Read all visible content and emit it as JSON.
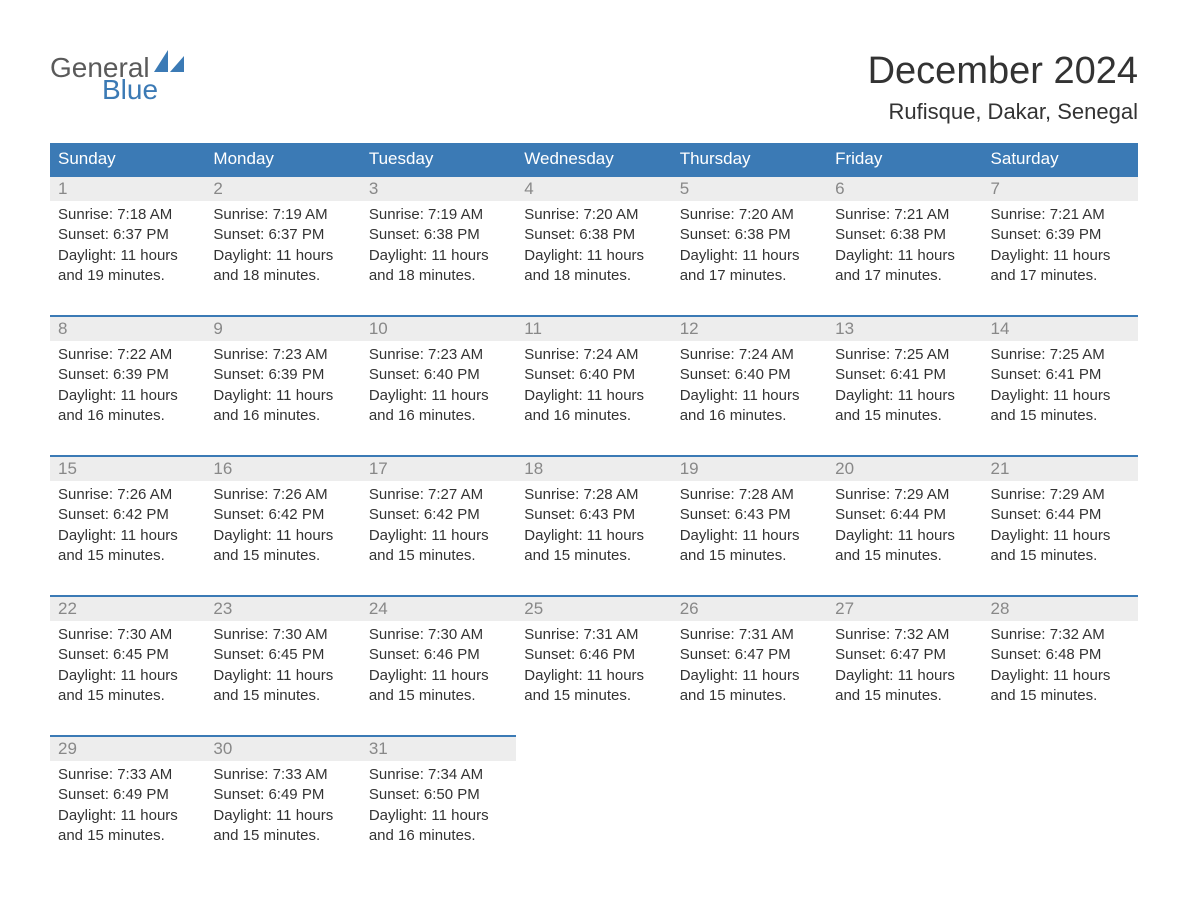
{
  "logo": {
    "text1": "General",
    "text2": "Blue",
    "icon_color": "#3b7ab5"
  },
  "title": "December 2024",
  "location": "Rufisque, Dakar, Senegal",
  "colors": {
    "header_bg": "#3b7ab5",
    "header_text": "#ffffff",
    "daynum_bg": "#ededed",
    "daynum_text": "#888888",
    "body_text": "#333333",
    "row_border": "#3b7ab5"
  },
  "weekdays": [
    "Sunday",
    "Monday",
    "Tuesday",
    "Wednesday",
    "Thursday",
    "Friday",
    "Saturday"
  ],
  "weeks": [
    [
      {
        "day": "1",
        "sunrise": "Sunrise: 7:18 AM",
        "sunset": "Sunset: 6:37 PM",
        "dl1": "Daylight: 11 hours",
        "dl2": "and 19 minutes."
      },
      {
        "day": "2",
        "sunrise": "Sunrise: 7:19 AM",
        "sunset": "Sunset: 6:37 PM",
        "dl1": "Daylight: 11 hours",
        "dl2": "and 18 minutes."
      },
      {
        "day": "3",
        "sunrise": "Sunrise: 7:19 AM",
        "sunset": "Sunset: 6:38 PM",
        "dl1": "Daylight: 11 hours",
        "dl2": "and 18 minutes."
      },
      {
        "day": "4",
        "sunrise": "Sunrise: 7:20 AM",
        "sunset": "Sunset: 6:38 PM",
        "dl1": "Daylight: 11 hours",
        "dl2": "and 18 minutes."
      },
      {
        "day": "5",
        "sunrise": "Sunrise: 7:20 AM",
        "sunset": "Sunset: 6:38 PM",
        "dl1": "Daylight: 11 hours",
        "dl2": "and 17 minutes."
      },
      {
        "day": "6",
        "sunrise": "Sunrise: 7:21 AM",
        "sunset": "Sunset: 6:38 PM",
        "dl1": "Daylight: 11 hours",
        "dl2": "and 17 minutes."
      },
      {
        "day": "7",
        "sunrise": "Sunrise: 7:21 AM",
        "sunset": "Sunset: 6:39 PM",
        "dl1": "Daylight: 11 hours",
        "dl2": "and 17 minutes."
      }
    ],
    [
      {
        "day": "8",
        "sunrise": "Sunrise: 7:22 AM",
        "sunset": "Sunset: 6:39 PM",
        "dl1": "Daylight: 11 hours",
        "dl2": "and 16 minutes."
      },
      {
        "day": "9",
        "sunrise": "Sunrise: 7:23 AM",
        "sunset": "Sunset: 6:39 PM",
        "dl1": "Daylight: 11 hours",
        "dl2": "and 16 minutes."
      },
      {
        "day": "10",
        "sunrise": "Sunrise: 7:23 AM",
        "sunset": "Sunset: 6:40 PM",
        "dl1": "Daylight: 11 hours",
        "dl2": "and 16 minutes."
      },
      {
        "day": "11",
        "sunrise": "Sunrise: 7:24 AM",
        "sunset": "Sunset: 6:40 PM",
        "dl1": "Daylight: 11 hours",
        "dl2": "and 16 minutes."
      },
      {
        "day": "12",
        "sunrise": "Sunrise: 7:24 AM",
        "sunset": "Sunset: 6:40 PM",
        "dl1": "Daylight: 11 hours",
        "dl2": "and 16 minutes."
      },
      {
        "day": "13",
        "sunrise": "Sunrise: 7:25 AM",
        "sunset": "Sunset: 6:41 PM",
        "dl1": "Daylight: 11 hours",
        "dl2": "and 15 minutes."
      },
      {
        "day": "14",
        "sunrise": "Sunrise: 7:25 AM",
        "sunset": "Sunset: 6:41 PM",
        "dl1": "Daylight: 11 hours",
        "dl2": "and 15 minutes."
      }
    ],
    [
      {
        "day": "15",
        "sunrise": "Sunrise: 7:26 AM",
        "sunset": "Sunset: 6:42 PM",
        "dl1": "Daylight: 11 hours",
        "dl2": "and 15 minutes."
      },
      {
        "day": "16",
        "sunrise": "Sunrise: 7:26 AM",
        "sunset": "Sunset: 6:42 PM",
        "dl1": "Daylight: 11 hours",
        "dl2": "and 15 minutes."
      },
      {
        "day": "17",
        "sunrise": "Sunrise: 7:27 AM",
        "sunset": "Sunset: 6:42 PM",
        "dl1": "Daylight: 11 hours",
        "dl2": "and 15 minutes."
      },
      {
        "day": "18",
        "sunrise": "Sunrise: 7:28 AM",
        "sunset": "Sunset: 6:43 PM",
        "dl1": "Daylight: 11 hours",
        "dl2": "and 15 minutes."
      },
      {
        "day": "19",
        "sunrise": "Sunrise: 7:28 AM",
        "sunset": "Sunset: 6:43 PM",
        "dl1": "Daylight: 11 hours",
        "dl2": "and 15 minutes."
      },
      {
        "day": "20",
        "sunrise": "Sunrise: 7:29 AM",
        "sunset": "Sunset: 6:44 PM",
        "dl1": "Daylight: 11 hours",
        "dl2": "and 15 minutes."
      },
      {
        "day": "21",
        "sunrise": "Sunrise: 7:29 AM",
        "sunset": "Sunset: 6:44 PM",
        "dl1": "Daylight: 11 hours",
        "dl2": "and 15 minutes."
      }
    ],
    [
      {
        "day": "22",
        "sunrise": "Sunrise: 7:30 AM",
        "sunset": "Sunset: 6:45 PM",
        "dl1": "Daylight: 11 hours",
        "dl2": "and 15 minutes."
      },
      {
        "day": "23",
        "sunrise": "Sunrise: 7:30 AM",
        "sunset": "Sunset: 6:45 PM",
        "dl1": "Daylight: 11 hours",
        "dl2": "and 15 minutes."
      },
      {
        "day": "24",
        "sunrise": "Sunrise: 7:30 AM",
        "sunset": "Sunset: 6:46 PM",
        "dl1": "Daylight: 11 hours",
        "dl2": "and 15 minutes."
      },
      {
        "day": "25",
        "sunrise": "Sunrise: 7:31 AM",
        "sunset": "Sunset: 6:46 PM",
        "dl1": "Daylight: 11 hours",
        "dl2": "and 15 minutes."
      },
      {
        "day": "26",
        "sunrise": "Sunrise: 7:31 AM",
        "sunset": "Sunset: 6:47 PM",
        "dl1": "Daylight: 11 hours",
        "dl2": "and 15 minutes."
      },
      {
        "day": "27",
        "sunrise": "Sunrise: 7:32 AM",
        "sunset": "Sunset: 6:47 PM",
        "dl1": "Daylight: 11 hours",
        "dl2": "and 15 minutes."
      },
      {
        "day": "28",
        "sunrise": "Sunrise: 7:32 AM",
        "sunset": "Sunset: 6:48 PM",
        "dl1": "Daylight: 11 hours",
        "dl2": "and 15 minutes."
      }
    ],
    [
      {
        "day": "29",
        "sunrise": "Sunrise: 7:33 AM",
        "sunset": "Sunset: 6:49 PM",
        "dl1": "Daylight: 11 hours",
        "dl2": "and 15 minutes."
      },
      {
        "day": "30",
        "sunrise": "Sunrise: 7:33 AM",
        "sunset": "Sunset: 6:49 PM",
        "dl1": "Daylight: 11 hours",
        "dl2": "and 15 minutes."
      },
      {
        "day": "31",
        "sunrise": "Sunrise: 7:34 AM",
        "sunset": "Sunset: 6:50 PM",
        "dl1": "Daylight: 11 hours",
        "dl2": "and 16 minutes."
      },
      null,
      null,
      null,
      null
    ]
  ]
}
